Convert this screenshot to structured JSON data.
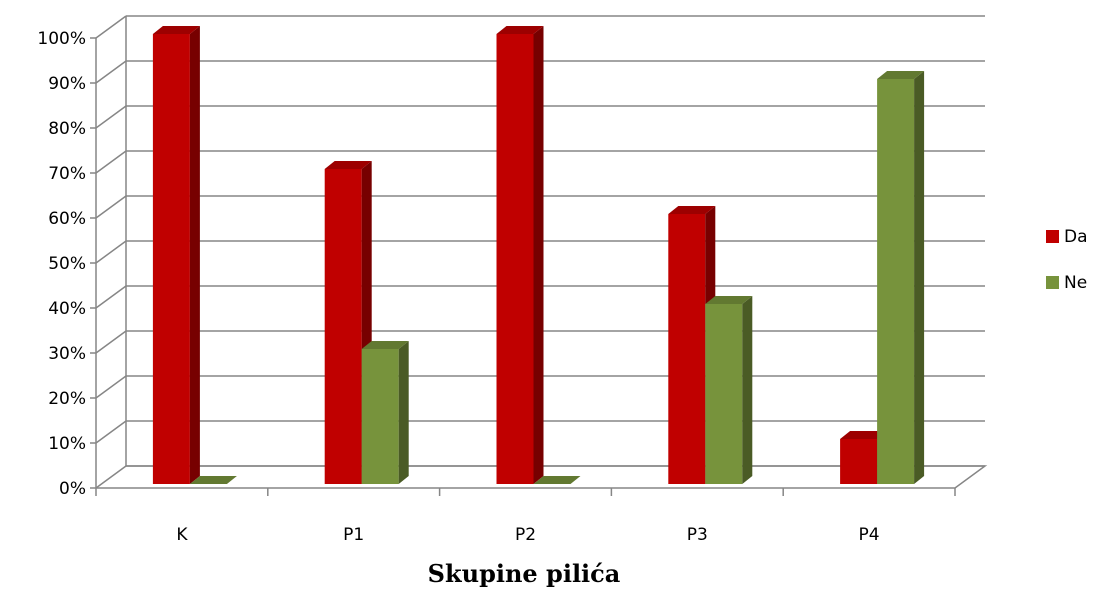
{
  "chart_data": {
    "type": "bar",
    "categories": [
      "K",
      "P1",
      "P2",
      "P3",
      "P4"
    ],
    "series": [
      {
        "name": "Da",
        "values": [
          100,
          70,
          100,
          60,
          10
        ],
        "color": "#c00000"
      },
      {
        "name": "Ne",
        "values": [
          0,
          30,
          0,
          40,
          90
        ],
        "color": "#77933c"
      }
    ],
    "title": "",
    "xlabel": "Skupine pilića",
    "ylabel": "",
    "ylim": [
      0,
      100
    ],
    "yticks": [
      "0%",
      "10%",
      "20%",
      "30%",
      "40%",
      "50%",
      "60%",
      "70%",
      "80%",
      "90%",
      "100%"
    ],
    "grid": true,
    "legend_position": "right",
    "style": "3d-clustered-column"
  }
}
